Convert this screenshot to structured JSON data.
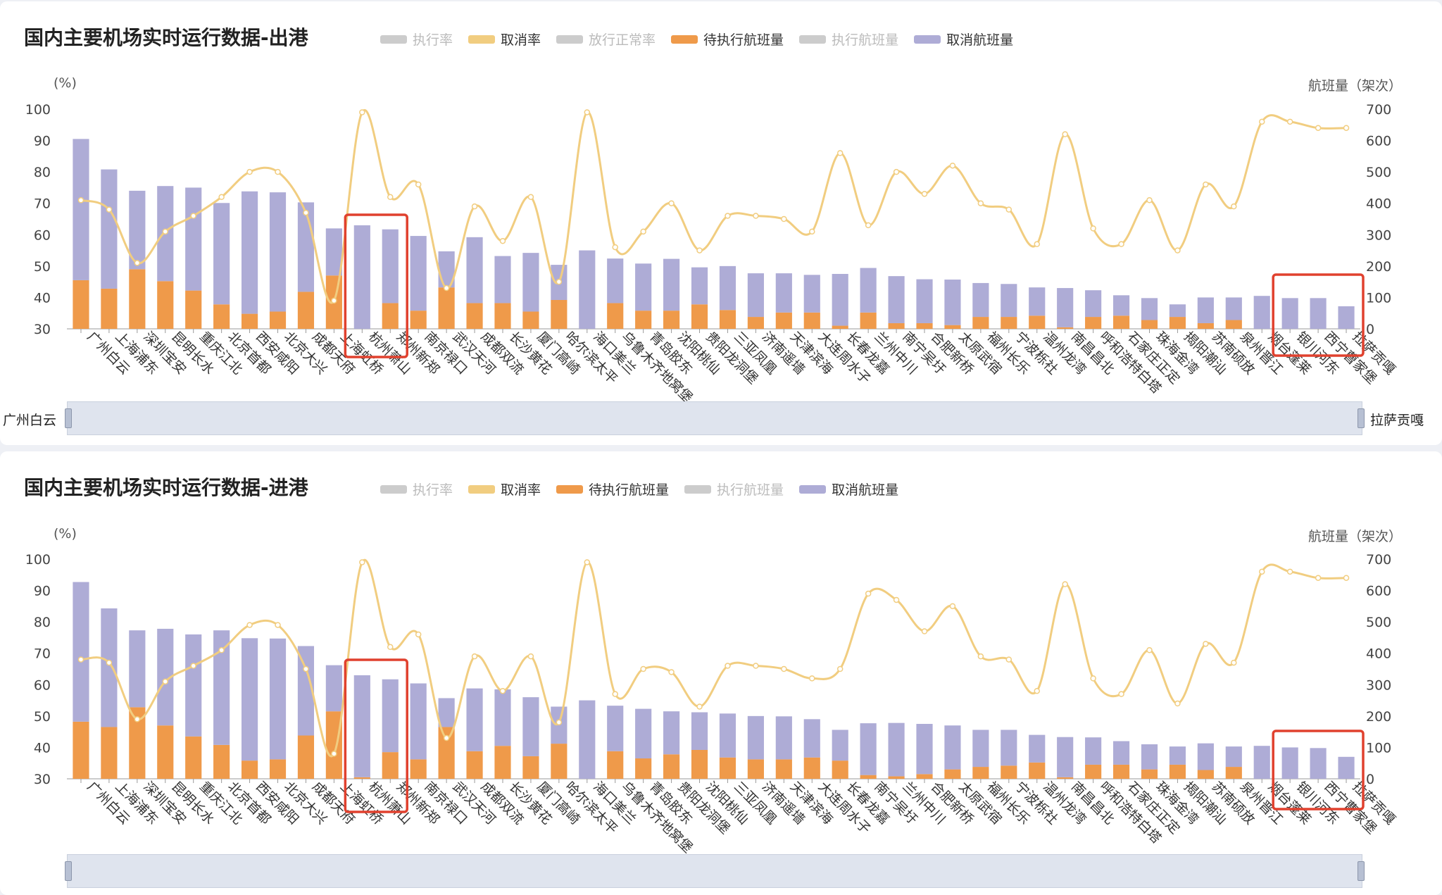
{
  "legend_colors": {
    "执行率": "#cccccc",
    "取消率": "#f1cd80",
    "放行正常率": "#cccccc",
    "待执行航班量": "#ef9a4a",
    "执行航班量": "#cccccc",
    "取消航班量": "#aeacd6"
  },
  "panels": [
    {
      "title": "国内主要机场实时运行数据-出港",
      "legend": [
        {
          "label": "执行率",
          "active": false
        },
        {
          "label": "取消率",
          "active": true
        },
        {
          "label": "放行正常率",
          "active": false
        },
        {
          "label": "待执行航班量",
          "active": true
        },
        {
          "label": "执行航班量",
          "active": false
        },
        {
          "label": "取消航班量",
          "active": true
        }
      ],
      "y_left_label": "(%)",
      "y_right_label": "航班量（架次）",
      "zoom_start": "广州白云",
      "zoom_end": "拉萨贡嘎"
    },
    {
      "title": "国内主要机场实时运行数据-进港",
      "legend": [
        {
          "label": "执行率",
          "active": false
        },
        {
          "label": "取消率",
          "active": true
        },
        {
          "label": "待执行航班量",
          "active": true
        },
        {
          "label": "执行航班量",
          "active": false
        },
        {
          "label": "取消航班量",
          "active": true
        }
      ],
      "y_left_label": "(%)",
      "y_right_label": "航班量（架次）",
      "zoom_start": "",
      "zoom_end": ""
    }
  ],
  "chart_data": [
    {
      "type": "bar",
      "title": "国内主要机场实时运行数据-出港",
      "categories": [
        "广州白云",
        "上海浦东",
        "深圳宝安",
        "昆明长水",
        "重庆江北",
        "北京首都",
        "西安咸阳",
        "北京大兴",
        "成都天府",
        "上海虹桥",
        "杭州萧山",
        "郑州新郑",
        "南京禄口",
        "武汉天河",
        "成都双流",
        "长沙黄花",
        "厦门高崎",
        "哈尔滨太平",
        "海口美兰",
        "乌鲁木齐地窝堡",
        "青岛胶东",
        "沈阳桃仙",
        "贵阳龙洞堡",
        "三亚凤凰",
        "济南遥墙",
        "天津滨海",
        "大连周水子",
        "长春龙嘉",
        "兰州中川",
        "南宁吴圩",
        "合肥新桥",
        "太原武宿",
        "福州长乐",
        "宁波栎社",
        "温州龙湾",
        "南昌昌北",
        "呼和浩特白塔",
        "石家庄正定",
        "珠海金湾",
        "揭阳潮汕",
        "苏南硕放",
        "泉州晋江",
        "烟台蓬莱",
        "银川河东",
        "西宁曹家堡",
        "拉萨贡嘎"
      ],
      "y_left": {
        "label": "(%)",
        "min": 30,
        "max": 100,
        "ticks": [
          30,
          40,
          50,
          60,
          70,
          80,
          90,
          100
        ]
      },
      "y_right": {
        "label": "航班量（架次）",
        "min": 0,
        "max": 700,
        "ticks": [
          0,
          100,
          200,
          300,
          400,
          500,
          600,
          700
        ]
      },
      "series": [
        {
          "name": "待执行航班量",
          "kind": "bar",
          "axis": "right",
          "stacked": true,
          "values": [
            155,
            128,
            190,
            152,
            122,
            78,
            48,
            55,
            118,
            170,
            0,
            82,
            58,
            132,
            82,
            82,
            55,
            92,
            0,
            82,
            58,
            58,
            78,
            60,
            38,
            52,
            52,
            10,
            52,
            18,
            18,
            12,
            38,
            38,
            42,
            5,
            38,
            42,
            28,
            38,
            18,
            28,
            0,
            0,
            0,
            0
          ]
        },
        {
          "name": "取消航班量",
          "kind": "bar",
          "axis": "right",
          "stacked": true,
          "values": [
            450,
            380,
            250,
            303,
            328,
            323,
            390,
            380,
            285,
            150,
            330,
            235,
            238,
            115,
            210,
            150,
            187,
            112,
            250,
            142,
            150,
            165,
            118,
            140,
            139,
            125,
            120,
            165,
            142,
            150,
            140,
            145,
            108,
            105,
            90,
            125,
            85,
            65,
            70,
            40,
            82,
            72,
            105,
            98,
            98,
            72
          ]
        },
        {
          "name": "取消率",
          "kind": "line",
          "axis": "left",
          "values": [
            71,
            68,
            51,
            61,
            66,
            72,
            80,
            80,
            67,
            39,
            99,
            72,
            76,
            43,
            69,
            58,
            72,
            45,
            99,
            56,
            61,
            70,
            55,
            66,
            66,
            65,
            61,
            86,
            63,
            80,
            73,
            82,
            70,
            68,
            57,
            92,
            62,
            57,
            71,
            55,
            76,
            69,
            96,
            96,
            94,
            94
          ]
        }
      ]
    },
    {
      "type": "bar",
      "title": "国内主要机场实时运行数据-进港",
      "categories": [
        "广州白云",
        "上海浦东",
        "深圳宝安",
        "昆明长水",
        "重庆江北",
        "北京首都",
        "西安咸阳",
        "北京大兴",
        "成都天府",
        "上海虹桥",
        "杭州萧山",
        "郑州新郑",
        "南京禄口",
        "武汉天河",
        "成都双流",
        "长沙黄花",
        "厦门高崎",
        "哈尔滨太平",
        "海口美兰",
        "乌鲁木齐地窝堡",
        "青岛胶东",
        "贵阳龙洞堡",
        "沈阳桃仙",
        "三亚凤凰",
        "济南遥墙",
        "天津滨海",
        "大连周水子",
        "长春龙嘉",
        "南宁吴圩",
        "兰州中川",
        "合肥新桥",
        "太原武宿",
        "福州长乐",
        "宁波栎社",
        "温州龙湾",
        "南昌昌北",
        "呼和浩特白塔",
        "石家庄正定",
        "珠海金湾",
        "揭阳潮汕",
        "苏南硕放",
        "泉州晋江",
        "烟台蓬莱",
        "银川河东",
        "西宁曹家堡",
        "拉萨贡嘎"
      ],
      "y_left": {
        "label": "(%)",
        "min": 30,
        "max": 100,
        "ticks": [
          30,
          40,
          50,
          60,
          70,
          80,
          90,
          100
        ]
      },
      "y_right": {
        "label": "航班量（架次）",
        "min": 0,
        "max": 700,
        "ticks": [
          0,
          100,
          200,
          300,
          400,
          500,
          600,
          700
        ]
      },
      "series": [
        {
          "name": "待执行航班量",
          "kind": "bar",
          "axis": "right",
          "stacked": true,
          "values": [
            182,
            165,
            228,
            170,
            135,
            108,
            58,
            62,
            138,
            215,
            5,
            85,
            62,
            165,
            88,
            105,
            72,
            112,
            0,
            88,
            65,
            78,
            92,
            68,
            62,
            62,
            68,
            58,
            12,
            8,
            15,
            30,
            38,
            42,
            52,
            5,
            45,
            45,
            30,
            45,
            28,
            38,
            0,
            0,
            0,
            0
          ]
        },
        {
          "name": "取消航班量",
          "kind": "bar",
          "axis": "right",
          "stacked": true,
          "values": [
            445,
            378,
            245,
            308,
            325,
            365,
            390,
            385,
            285,
            147,
            325,
            232,
            242,
            92,
            200,
            180,
            188,
            118,
            250,
            145,
            158,
            137,
            120,
            140,
            138,
            137,
            122,
            98,
            165,
            170,
            160,
            140,
            118,
            114,
            88,
            128,
            87,
            75,
            80,
            58,
            85,
            65,
            105,
            100,
            98,
            70
          ]
        },
        {
          "name": "取消率",
          "kind": "line",
          "axis": "left",
          "values": [
            68,
            67,
            49,
            61,
            66,
            71,
            79,
            79,
            65,
            38,
            99,
            72,
            76,
            43,
            69,
            58,
            69,
            48,
            99,
            57,
            65,
            64,
            53,
            66,
            66,
            65,
            62,
            65,
            89,
            87,
            77,
            85,
            69,
            68,
            58,
            92,
            62,
            57,
            71,
            54,
            73,
            67,
            96,
            96,
            94,
            94
          ]
        }
      ]
    }
  ]
}
